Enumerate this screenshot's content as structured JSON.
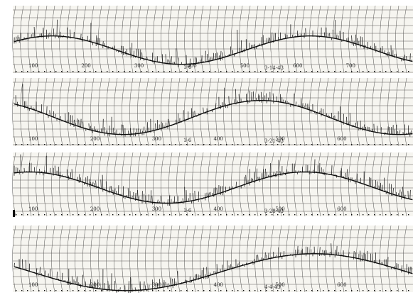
{
  "figure": {
    "description_visible": "",
    "strips": [
      {
        "id": "strip-1",
        "stamp": "3-14-43",
        "note": "1-6",
        "scale_labels": [
          "100",
          "200",
          "300",
          "400",
          "500",
          "600",
          "700"
        ]
      },
      {
        "id": "strip-2",
        "stamp": "3-21-43",
        "note": "1-6",
        "scale_labels": [
          "100",
          "200",
          "300",
          "400",
          "500",
          "600"
        ]
      },
      {
        "id": "strip-3",
        "stamp": "3-28-43",
        "note": "1-6",
        "scale_labels": [
          "100",
          "200",
          "300",
          "400",
          "500",
          "600"
        ]
      },
      {
        "id": "strip-4",
        "stamp": "4-4-43",
        "note": "",
        "scale_labels": [
          "100",
          "200",
          "300",
          "400",
          "500",
          "600"
        ]
      }
    ]
  },
  "colors": {
    "paper": "#f6f5f0",
    "grid": "#2a2a2a",
    "trace": "#0d0d0d",
    "gap": "#ffffff"
  }
}
